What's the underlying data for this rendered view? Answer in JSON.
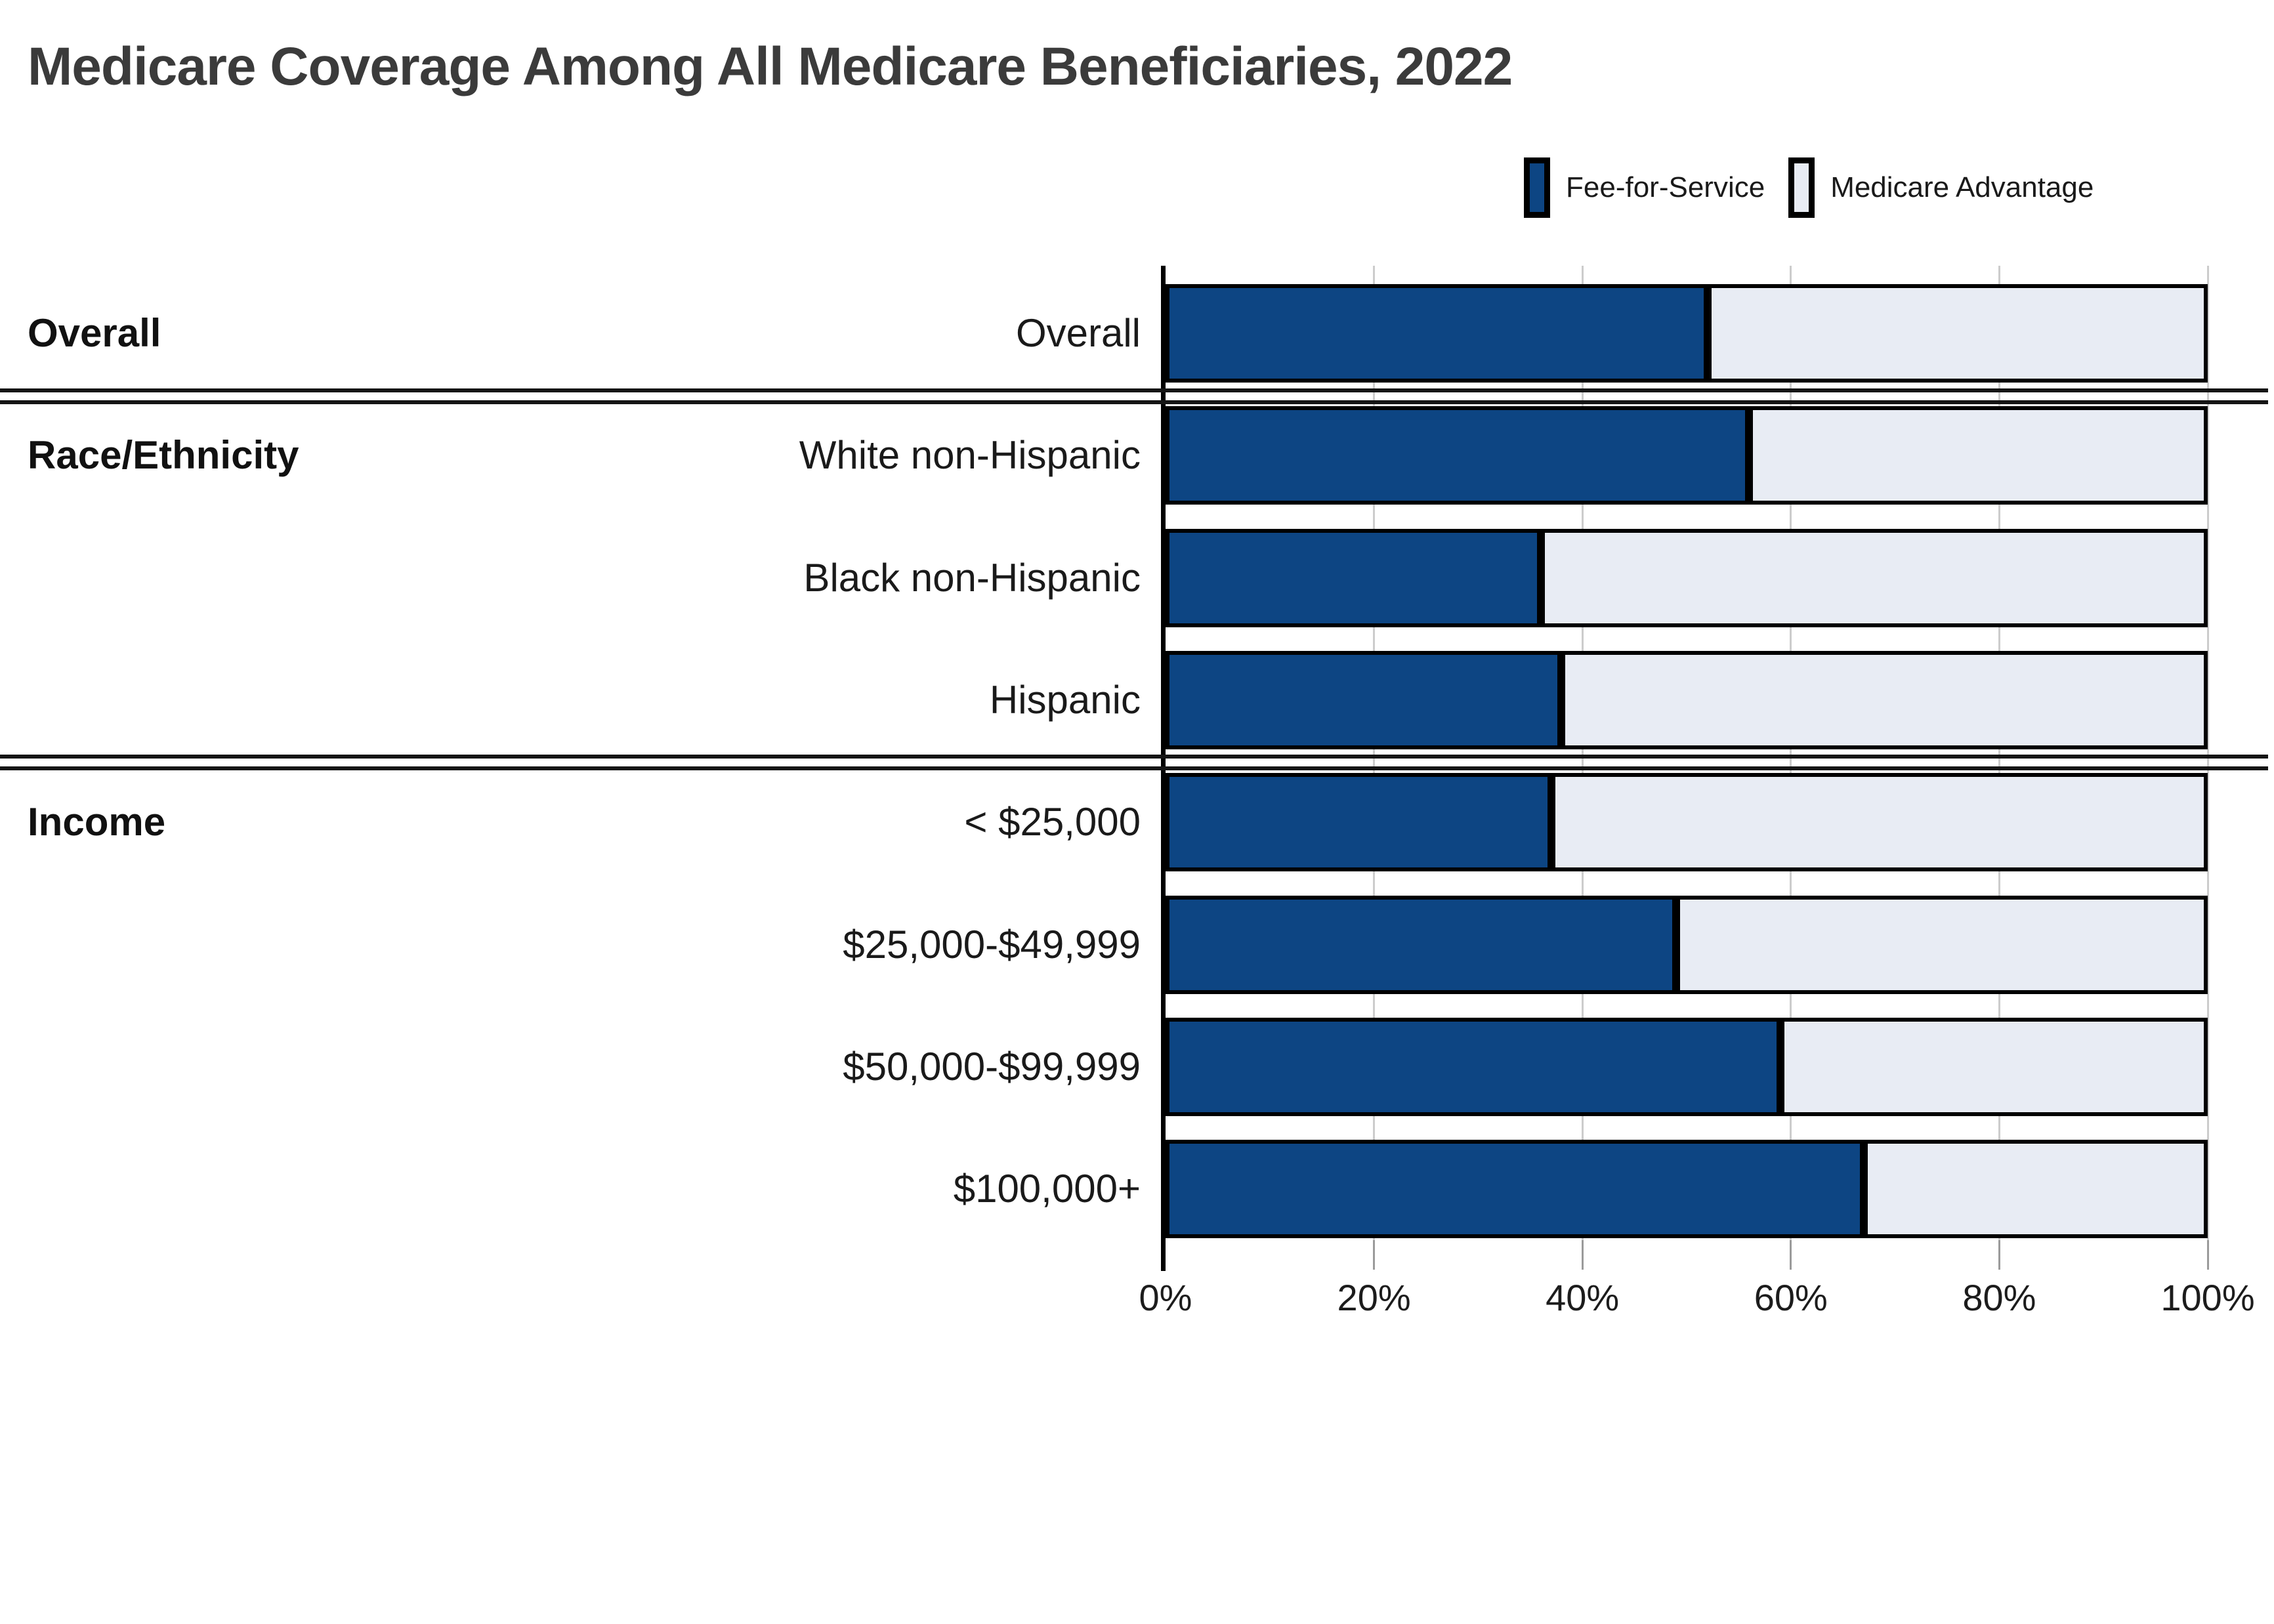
{
  "title": "Medicare Coverage Among All Medicare Beneficiaries, 2022",
  "legend": {
    "items": [
      {
        "label": "Fee-for-Service",
        "color": "#0D4583"
      },
      {
        "label": "Medicare Advantage",
        "color": "#E8ECF4"
      }
    ]
  },
  "colors": {
    "fee_for_service": "#0D4583",
    "medicare_advantage": "#E8ECF4",
    "bar_border": "#000000",
    "gridline": "#cccccc",
    "title_text": "#3b3b3b"
  },
  "chart_data": {
    "type": "bar",
    "stacked": true,
    "orientation": "horizontal",
    "title": "Medicare Coverage Among All Medicare Beneficiaries, 2022",
    "categories": [
      "Overall",
      "White non-Hispanic",
      "Black non-Hispanic",
      "Hispanic",
      "< $25,000",
      "$25,000-$49,999",
      "$50,000-$99,999",
      "$100,000+"
    ],
    "series": [
      {
        "name": "Fee-for-Service",
        "values": [
          52,
          56,
          36,
          38,
          37,
          49,
          59,
          67
        ]
      },
      {
        "name": "Medicare Advantage",
        "values": [
          48,
          44,
          64,
          62,
          63,
          51,
          41,
          33
        ]
      }
    ],
    "groups": [
      {
        "label": "Overall",
        "first_row": 0
      },
      {
        "label": "Race/Ethnicity",
        "first_row": 1
      },
      {
        "label": "Income",
        "first_row": 4
      }
    ],
    "x_ticks": [
      "0%",
      "20%",
      "40%",
      "60%",
      "80%",
      "100%"
    ],
    "x_tick_values": [
      0,
      20,
      40,
      60,
      80,
      100
    ],
    "xlim": [
      0,
      100
    ],
    "xlabel": "",
    "ylabel": "",
    "grid": true,
    "legend_position": "top-right"
  }
}
